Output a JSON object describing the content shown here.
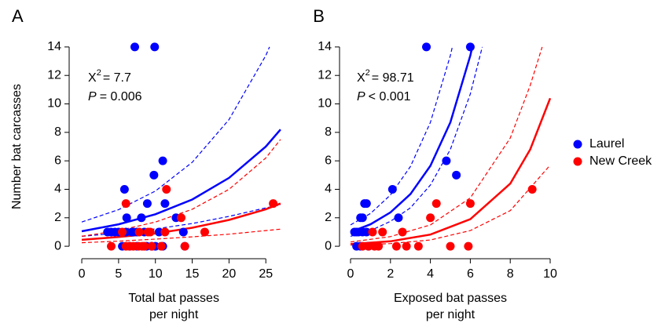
{
  "chart_data": [
    {
      "type": "scatter",
      "panel": "A",
      "xlabel": [
        "Total bat passes",
        "per night"
      ],
      "ylabel": "Number bat carcasses",
      "stat": {
        "label": "X",
        "sup": "2",
        "value": "= 7.7"
      },
      "p": {
        "label": "P",
        "value": "= 0.006"
      },
      "xlim": [
        -1.5,
        28.5
      ],
      "ylim": [
        -0.6,
        14.6
      ],
      "xticks": [
        0,
        5,
        10,
        15,
        20,
        25
      ],
      "yticks": [
        0,
        2,
        4,
        6,
        8,
        10,
        12,
        14
      ],
      "series": [
        {
          "name": "Laurel",
          "color": "#0000ff",
          "x": [
            7.2,
            9.9,
            11,
            9.8,
            8.9,
            11.3,
            12.8,
            5.8,
            8.1,
            6.1,
            4,
            4.5,
            5,
            6,
            7,
            7.5,
            8.5,
            13.8,
            5.5,
            6.5,
            8.8,
            9.5,
            10,
            11,
            14,
            3.5,
            10.5,
            6.8,
            7.5
          ],
          "values": [
            14,
            14,
            6,
            5,
            3,
            3,
            2,
            4,
            2,
            2,
            1,
            1,
            1,
            1,
            1,
            1,
            1,
            1,
            0,
            0,
            0,
            0,
            0,
            0,
            0,
            1,
            1,
            1,
            0
          ]
        },
        {
          "name": "New Creek",
          "color": "#ff0000",
          "x": [
            6,
            11.5,
            13.5,
            26,
            16.7,
            11.3,
            7.8,
            9,
            4,
            6,
            6.5,
            7,
            7.7,
            8.5,
            9.5,
            10.8,
            14,
            9.3,
            5.5,
            8.2
          ],
          "values": [
            3,
            4,
            2,
            3,
            1,
            1,
            1,
            1,
            0,
            0,
            0,
            0,
            0,
            0,
            0,
            0,
            0,
            1,
            1,
            0
          ]
        }
      ],
      "fits": [
        {
          "color": "#0000ff",
          "style": "solid",
          "x": [
            0,
            5,
            10,
            15,
            20,
            25,
            27
          ],
          "values": [
            1.05,
            1.54,
            2.25,
            3.28,
            4.8,
            7.0,
            8.2
          ]
        },
        {
          "color": "#0000ff",
          "style": "dashed",
          "x": [
            0,
            5,
            10,
            15,
            20,
            25,
            25.5
          ],
          "values": [
            1.7,
            2.57,
            3.88,
            5.9,
            8.9,
            13.4,
            14
          ]
        },
        {
          "color": "#0000ff",
          "style": "dashed",
          "x": [
            0,
            5,
            10,
            15,
            20,
            25,
            27
          ],
          "values": [
            0.7,
            0.92,
            1.22,
            1.6,
            2.1,
            2.7,
            2.9
          ]
        },
        {
          "color": "#ff0000",
          "style": "solid",
          "x": [
            0,
            5,
            10,
            15,
            20,
            25,
            27
          ],
          "values": [
            0.45,
            0.65,
            0.9,
            1.3,
            1.85,
            2.6,
            3.0
          ]
        },
        {
          "color": "#ff0000",
          "style": "dashed",
          "x": [
            0,
            5,
            10,
            15,
            20,
            25,
            27
          ],
          "values": [
            0.7,
            1.1,
            1.7,
            2.6,
            4.0,
            6.2,
            7.5
          ]
        },
        {
          "color": "#ff0000",
          "style": "dashed",
          "x": [
            0,
            5,
            10,
            15,
            20,
            25,
            27
          ],
          "values": [
            0.25,
            0.36,
            0.5,
            0.66,
            0.85,
            1.1,
            1.2
          ]
        }
      ]
    },
    {
      "type": "scatter",
      "panel": "B",
      "xlabel": [
        "Exposed bat passes",
        "per night"
      ],
      "stat": {
        "label": "X",
        "sup": "2",
        "value": "= 98.71"
      },
      "p": {
        "label": "P",
        "value": "< 0.001"
      },
      "xlim": [
        -0.5,
        10.5
      ],
      "ylim": [
        -0.6,
        14.6
      ],
      "xticks": [
        0,
        2,
        4,
        6,
        8,
        10
      ],
      "yticks": [
        0,
        2,
        4,
        6,
        8,
        10,
        12,
        14
      ],
      "series": [
        {
          "color": "#0000ff",
          "x": [
            3.8,
            6,
            4.8,
            5.3,
            0.7,
            0.8,
            2.1,
            0.5,
            0.6,
            2.4,
            0.2,
            0.3,
            0.4,
            0.6,
            0.8,
            0.3,
            0.5,
            0.9
          ],
          "values": [
            14,
            14,
            6,
            5,
            3,
            3,
            4,
            2,
            2,
            2,
            1,
            1,
            1,
            1,
            1,
            0,
            0,
            0
          ]
        },
        {
          "color": "#ff0000",
          "x": [
            9.1,
            4.3,
            6,
            4,
            1.6,
            2.6,
            0.9,
            1.2,
            1.4,
            2.3,
            2.8,
            3.4,
            5,
            5.9,
            1.1,
            0.6
          ],
          "values": [
            4,
            3,
            3,
            2,
            1,
            1,
            0,
            0,
            0,
            0,
            0,
            0,
            0,
            0,
            1,
            0
          ]
        }
      ],
      "fits": [
        {
          "color": "#0000ff",
          "style": "solid",
          "x": [
            0,
            1,
            2,
            3,
            4,
            5,
            6,
            6.1
          ],
          "values": [
            1,
            1.54,
            2.38,
            3.66,
            5.65,
            8.7,
            13.4,
            14
          ]
        },
        {
          "color": "#0000ff",
          "style": "dashed",
          "x": [
            0,
            1,
            2,
            3,
            4,
            5,
            5.1
          ],
          "values": [
            1.5,
            2.3,
            3.6,
            5.6,
            8.7,
            13.4,
            14
          ]
        },
        {
          "color": "#0000ff",
          "style": "dashed",
          "x": [
            0,
            1,
            2,
            3,
            4,
            5,
            6,
            6.6
          ],
          "values": [
            0.7,
            1.1,
            1.75,
            2.7,
            4.3,
            6.8,
            10.7,
            14
          ]
        },
        {
          "color": "#ff0000",
          "style": "solid",
          "x": [
            0,
            2,
            4,
            6,
            8,
            9,
            10
          ],
          "values": [
            0.15,
            0.35,
            0.82,
            1.9,
            4.4,
            6.8,
            10.4
          ]
        },
        {
          "color": "#ff0000",
          "style": "dashed",
          "x": [
            0,
            2,
            4,
            6,
            8,
            9,
            9.6
          ],
          "values": [
            0.3,
            0.68,
            1.5,
            3.4,
            7.6,
            11.3,
            14
          ]
        },
        {
          "color": "#ff0000",
          "style": "dashed",
          "x": [
            0,
            2,
            4,
            6,
            8,
            10
          ],
          "values": [
            0.08,
            0.19,
            0.44,
            1.1,
            2.5,
            5.7
          ]
        }
      ]
    }
  ]
}
